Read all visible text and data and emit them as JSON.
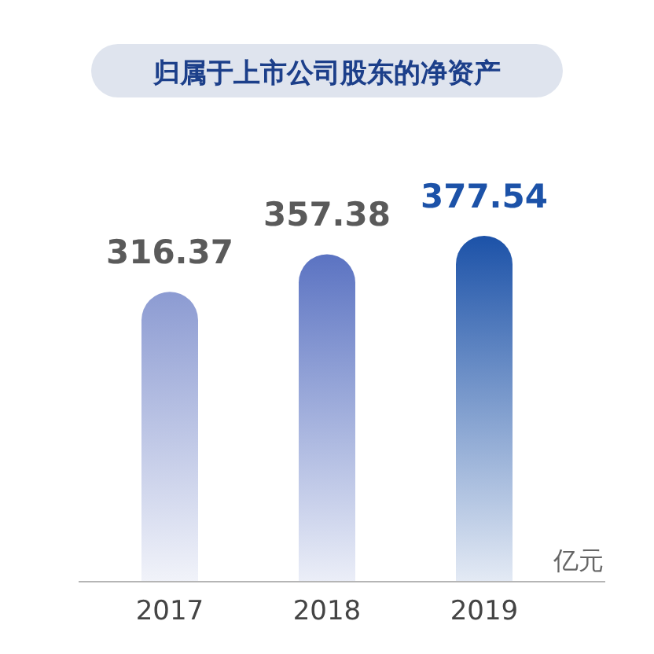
{
  "chart_data": {
    "type": "bar",
    "title": "归属于上市公司股东的净资产",
    "ylabel": "亿元",
    "categories": [
      "2017",
      "2018",
      "2019"
    ],
    "values": [
      316.37,
      357.38,
      377.54
    ],
    "colors": [
      "#8c9bd2",
      "#5b73c2",
      "#1c52a8"
    ],
    "data_labels": true
  }
}
